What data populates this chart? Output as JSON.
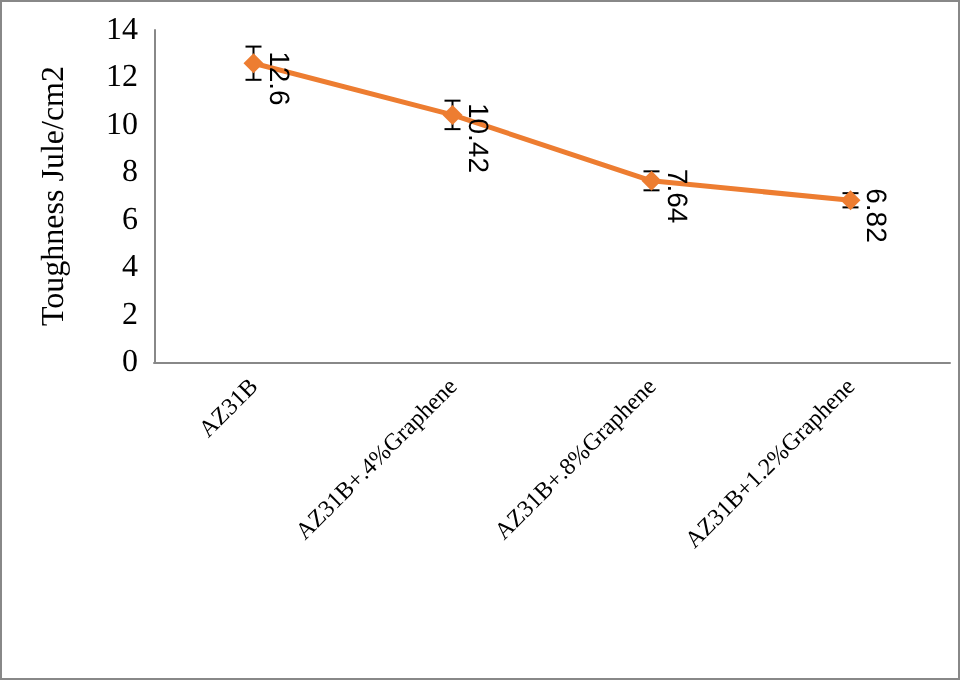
{
  "chart_data": {
    "type": "line",
    "ylabel": "Toughness Jule/cm2",
    "categories": [
      "AZ31B",
      "AZ31B+.4%Graphene",
      "AZ31B+.8%Graphene",
      "AZ31B+1.2%Graphene"
    ],
    "series": [
      {
        "color": "#ed7d31",
        "values": [
          12.6,
          10.42,
          7.64,
          6.82
        ],
        "errors": [
          0.7,
          0.6,
          0.4,
          0.3
        ]
      }
    ],
    "ylim": [
      0,
      14
    ],
    "yticks": [
      0,
      2,
      4,
      6,
      8,
      10,
      12,
      14
    ],
    "grid": false,
    "marker": "diamond",
    "line_style": "solid",
    "data_labels": true
  }
}
